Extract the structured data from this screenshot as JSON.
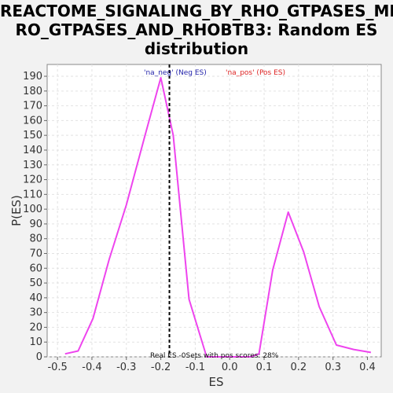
{
  "chart_data": {
    "type": "line",
    "title": "REACTOME_SIGNALING_BY_RHO_GTPASES_MIRO_GTPASES_AND_RHOBTB3: Random ES distribution",
    "title_lines": [
      "REACTOME_SIGNALING_BY_RHO_GTPASES_MI",
      "RO_GTPASES_AND_RHOBTB3: Random ES",
      "distribution"
    ],
    "xlabel": "ES",
    "ylabel": "P(ES)",
    "xlim": [
      -0.53,
      0.44
    ],
    "ylim": [
      0,
      198
    ],
    "xticks": [
      -0.5,
      -0.4,
      -0.3,
      -0.2,
      -0.1,
      0.0,
      0.1,
      0.2,
      0.3,
      0.4
    ],
    "xtick_labels": [
      "-0.5",
      "-0.4",
      "-0.3",
      "-0.2",
      "-0.1",
      "0.0",
      "0.1",
      "0.2",
      "0.3",
      "0.4"
    ],
    "yticks": [
      0,
      10,
      20,
      30,
      40,
      50,
      60,
      70,
      80,
      90,
      100,
      110,
      120,
      130,
      140,
      150,
      160,
      170,
      180,
      190
    ],
    "grid": true,
    "legend": [
      {
        "label": "'na_neg' (Neg ES)",
        "color": "#2222aa"
      },
      {
        "label": "'na_pos' (Pos ES)",
        "color": "#dd2222"
      }
    ],
    "series": [
      {
        "color": "#ee44ee",
        "x": [
          -0.478,
          -0.44,
          -0.397,
          -0.35,
          -0.3,
          -0.247,
          -0.2,
          -0.164,
          -0.118,
          -0.067,
          -0.04,
          0.06,
          0.085,
          0.125,
          0.17,
          0.215,
          0.26,
          0.31,
          0.36,
          0.41
        ],
        "y": [
          2,
          4,
          26,
          66,
          103,
          149,
          189,
          150,
          39,
          0,
          0,
          0,
          2,
          59,
          98,
          71,
          34,
          8,
          5,
          3
        ]
      }
    ],
    "real_es_line": {
      "x": -0.175,
      "style": "dashed",
      "color": "#000000"
    },
    "annotation": "Real ES -0Sets with pos scores: 28%"
  }
}
